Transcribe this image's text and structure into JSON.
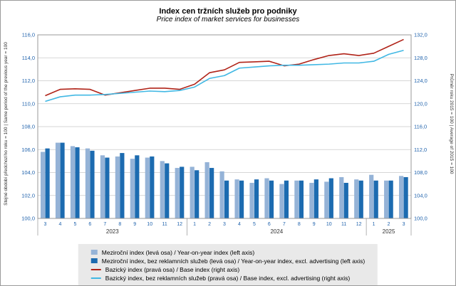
{
  "chart_data": {
    "type": "bar+line",
    "title": "Index cen tržních služeb pro podniky",
    "subtitle": "Price index of market services for businesses",
    "left_axis_label": "Stejné období předchozího roku = 100 | Same period of the previous year = 100",
    "right_axis_label": "Průměr roku 2015 = 100 | Average of 2015 = 100",
    "grid": true,
    "legend_position": "bottom",
    "left_ylim": [
      100.0,
      116.0
    ],
    "right_ylim": [
      100.0,
      132.0
    ],
    "left_ticks": [
      "116,0",
      "114,0",
      "112,0",
      "110,0",
      "108,0",
      "106,0",
      "104,0",
      "102,0",
      "100,0"
    ],
    "right_ticks": [
      "132,0",
      "128,0",
      "124,0",
      "120,0",
      "116,0",
      "112,0",
      "108,0",
      "104,0",
      "100,0"
    ],
    "x_months": [
      "3",
      "4",
      "5",
      "6",
      "7",
      "8",
      "9",
      "10",
      "11",
      "12",
      "1",
      "2",
      "3",
      "4",
      "5",
      "6",
      "7",
      "8",
      "9",
      "10",
      "11",
      "12",
      "1",
      "2",
      "3"
    ],
    "year_groups": [
      {
        "label": "2023",
        "count": 10
      },
      {
        "label": "2024",
        "count": 12
      },
      {
        "label": "2025",
        "count": 3
      }
    ],
    "series": [
      {
        "name": "Meziroční index (levá osa) / Year-on-year index (left axis)",
        "type": "bar",
        "axis": "left",
        "color": "#95b3d7",
        "values": [
          105.8,
          106.6,
          106.3,
          106.1,
          105.5,
          105.4,
          105.2,
          105.3,
          105.0,
          104.4,
          104.5,
          104.9,
          104.1,
          103.4,
          103.1,
          103.5,
          103.0,
          103.3,
          103.1,
          103.2,
          103.6,
          103.4,
          103.8,
          103.3,
          103.7
        ]
      },
      {
        "name": "Meziroční index, bez reklamních služeb (levá osa) / Year-on-year index, excl. advertising (left axis)",
        "type": "bar",
        "axis": "left",
        "color": "#1c6bb0",
        "values": [
          106.1,
          106.6,
          106.2,
          105.9,
          105.3,
          105.7,
          105.5,
          105.4,
          104.8,
          104.5,
          104.2,
          104.4,
          103.3,
          103.3,
          103.4,
          103.3,
          103.3,
          103.3,
          103.4,
          103.5,
          103.1,
          103.3,
          103.3,
          103.3,
          103.6
        ]
      },
      {
        "name": "Bazický index (pravá osa) / Base index (right axis)",
        "type": "line",
        "axis": "right",
        "color": "#b02318",
        "values": [
          121.4,
          122.5,
          122.6,
          122.5,
          121.5,
          121.9,
          122.3,
          122.7,
          122.7,
          122.5,
          123.4,
          125.4,
          125.9,
          127.2,
          127.3,
          127.4,
          126.6,
          126.9,
          127.7,
          128.4,
          128.7,
          128.4,
          128.8,
          130.0,
          131.2
        ]
      },
      {
        "name": "Bazický index, bez reklamních služeb (pravá osa) / Base index, excl. advertising (right axis)",
        "type": "line",
        "axis": "right",
        "color": "#41b8e4",
        "values": [
          120.4,
          121.2,
          121.5,
          121.5,
          121.6,
          121.8,
          122.0,
          122.2,
          122.1,
          122.3,
          122.9,
          124.4,
          124.9,
          126.2,
          126.4,
          126.6,
          126.7,
          126.7,
          126.8,
          126.9,
          127.1,
          127.1,
          127.4,
          128.6,
          129.3
        ]
      }
    ]
  },
  "colors": {
    "grid": "#c9c9c9",
    "axis_text": "#1f62ac",
    "year_text": "#333333",
    "plot_border": "#9a9a9a",
    "legend_bg": "#e9e9e9"
  }
}
